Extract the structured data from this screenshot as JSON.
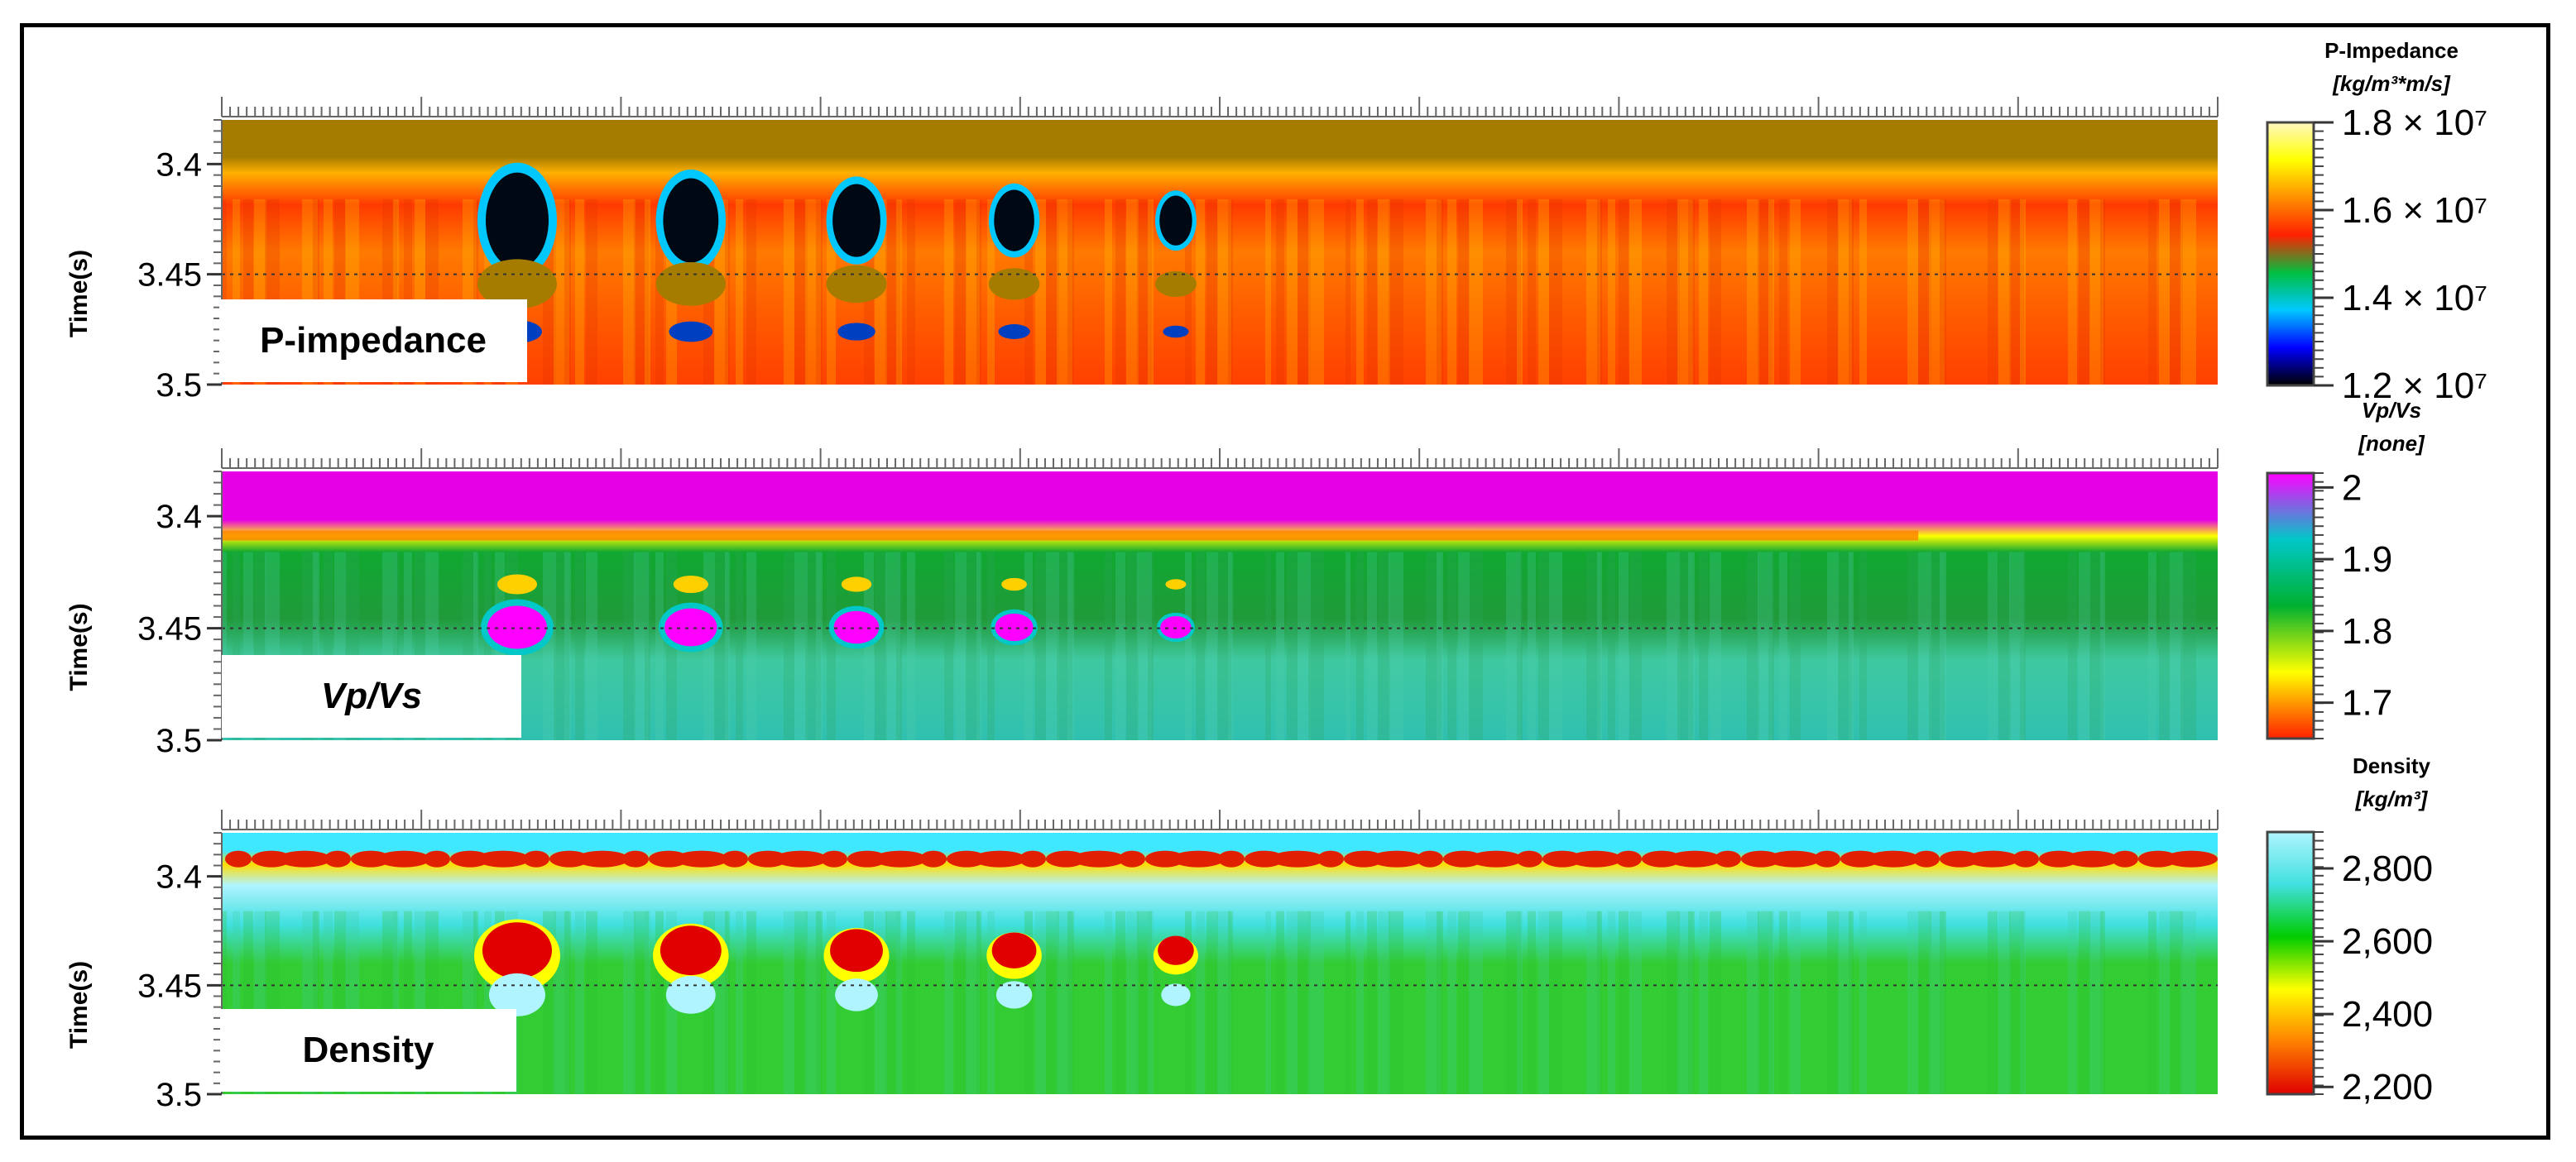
{
  "chart_data": [
    {
      "type": "heatmap",
      "panel_label": "P-impedance",
      "ylabel": "Time(s)",
      "y_ticks": [
        "3.4",
        "3.45",
        "3.5"
      ],
      "y_tick_values": [
        3.4,
        3.45,
        3.5
      ],
      "ylim": [
        3.38,
        3.5
      ],
      "colorbar": {
        "title_line1": "P-Impedance",
        "title_line2": "[kg/m³*m/s]",
        "tick_labels": [
          "1.8 × 10⁷",
          "1.6 × 10⁷",
          "1.4 × 10⁷",
          "1.2 × 10⁷"
        ],
        "tick_values": [
          18000000,
          16000000,
          14000000,
          12000000
        ],
        "range": [
          12000000,
          18000000
        ],
        "colors": [
          "#000000",
          "#0000ff",
          "#00c8ff",
          "#00c040",
          "#ff2000",
          "#ff9000",
          "#ffff00",
          "#fff8c0"
        ]
      },
      "background_color": "#ff6a00",
      "anomaly_color": "#000814",
      "top_layer_color": "#a67c00"
    },
    {
      "type": "heatmap",
      "panel_label": "Vp/Vs",
      "ylabel": "Time(s)",
      "y_ticks": [
        "3.4",
        "3.45",
        "3.5"
      ],
      "y_tick_values": [
        3.4,
        3.45,
        3.5
      ],
      "ylim": [
        3.38,
        3.5
      ],
      "colorbar": {
        "title_line1": "Vp/Vs",
        "title_line2": "[none]",
        "tick_labels": [
          "2",
          "1.9",
          "1.8",
          "1.7"
        ],
        "tick_values": [
          2.0,
          1.9,
          1.8,
          1.7
        ],
        "range": [
          1.65,
          2.02
        ],
        "colors": [
          "#ff2000",
          "#ffff00",
          "#00b030",
          "#00c8c8",
          "#ff00ff"
        ]
      },
      "background_color": "#3fc9a0",
      "anomaly_color": "#ff00ff",
      "top_layer_color": "#e600e6"
    },
    {
      "type": "heatmap",
      "panel_label": "Density",
      "ylabel": "Time(s)",
      "y_ticks": [
        "3.4",
        "3.45",
        "3.5"
      ],
      "y_tick_values": [
        3.4,
        3.45,
        3.5
      ],
      "ylim": [
        3.38,
        3.5
      ],
      "colorbar": {
        "title_line1": "Density",
        "title_line2": "[kg/m³]",
        "tick_labels": [
          "2,800",
          "2,600",
          "2,400",
          "2,200"
        ],
        "tick_values": [
          2800,
          2600,
          2400,
          2200
        ],
        "range": [
          2180,
          2900
        ],
        "colors": [
          "#e00000",
          "#ff8000",
          "#ffff00",
          "#00cc00",
          "#40e0e0",
          "#b0f4ff"
        ]
      },
      "background_color": "#33cc33",
      "anomaly_color": "#e00000",
      "top_layer_color": "#40e8ff"
    }
  ]
}
